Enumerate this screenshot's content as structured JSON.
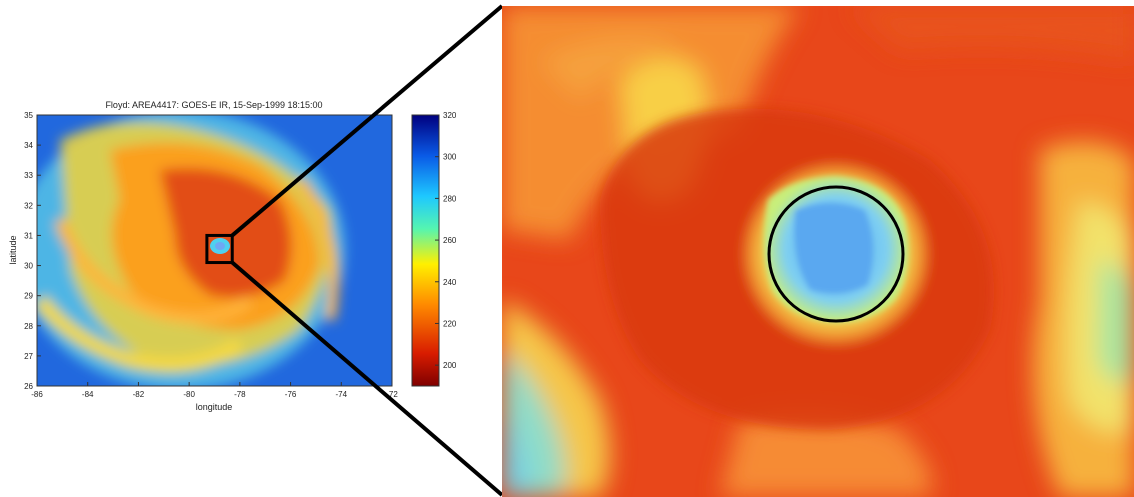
{
  "chart_data": {
    "type": "heatmap",
    "title": "Floyd: AREA4417: GOES-E IR, 15-Sep-1999 18:15:00",
    "xlabel": "longitude",
    "ylabel": "latitude",
    "xlim": [
      -86,
      -72
    ],
    "ylim": [
      26,
      35
    ],
    "x_ticks": [
      "-86",
      "-84",
      "-82",
      "-80",
      "-78",
      "-76",
      "-74",
      "-72"
    ],
    "y_ticks": [
      "26",
      "27",
      "28",
      "29",
      "30",
      "31",
      "32",
      "33",
      "34",
      "35"
    ],
    "colorbar": {
      "range": [
        190,
        320
      ],
      "ticks": [
        "200",
        "220",
        "240",
        "260",
        "280",
        "300",
        "320"
      ],
      "colormap": "jet"
    },
    "zoom_box": {
      "lon": [
        -79.3,
        -78.3
      ],
      "lat": [
        30.1,
        31.0
      ]
    },
    "eye_center": {
      "lon": -78.8,
      "lat": 30.5
    },
    "colors": {
      "cold_cloud": "#d03a12",
      "warm_eye": "#6fc4f0",
      "clear_sky": "#1f62d6",
      "outline": "#000000"
    }
  }
}
